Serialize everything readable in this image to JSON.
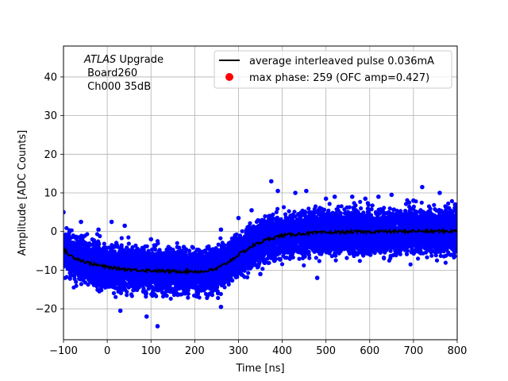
{
  "chart_data": {
    "type": "scatter",
    "xlabel": "Time [ns]",
    "ylabel": "Amplitude [ADC Counts]",
    "xlim": [
      -100,
      800
    ],
    "ylim": [
      -28,
      48
    ],
    "x_ticks": [
      -100,
      0,
      100,
      200,
      300,
      400,
      500,
      600,
      700,
      800
    ],
    "y_ticks": [
      -20,
      -10,
      0,
      10,
      20,
      30,
      40
    ],
    "grid": true,
    "legend_position": "top-right",
    "annotation": {
      "line1_italic": "ATLAS",
      "line1_rest": " Upgrade",
      "line2": " Board260",
      "line3": " Ch000 35dB"
    },
    "series": [
      {
        "name": "average interleaved pulse 0.036mA",
        "kind": "line",
        "color": "#000000",
        "x": [
          -100,
          -90,
          -80,
          -70,
          -60,
          -50,
          -40,
          -30,
          -20,
          -10,
          0,
          20,
          40,
          60,
          80,
          100,
          120,
          140,
          160,
          180,
          200,
          220,
          230,
          240,
          250,
          260,
          270,
          280,
          290,
          300,
          310,
          320,
          330,
          340,
          350,
          360,
          370,
          380,
          390,
          400,
          420,
          440,
          460,
          480,
          500,
          520,
          540,
          560,
          580,
          600,
          620,
          640,
          660,
          680,
          700,
          720,
          740,
          760,
          780,
          800
        ],
        "y": [
          -4.5,
          -5.8,
          -6.5,
          -7.0,
          -7.4,
          -7.9,
          -8.2,
          -8.5,
          -8.7,
          -9.0,
          -9.2,
          -9.5,
          -9.7,
          -9.9,
          -10.0,
          -10.1,
          -10.2,
          -10.3,
          -10.3,
          -10.3,
          -10.3,
          -10.4,
          -10.1,
          -10.0,
          -9.6,
          -9.0,
          -8.4,
          -7.6,
          -6.9,
          -6.0,
          -5.3,
          -4.6,
          -3.9,
          -3.3,
          -2.8,
          -2.3,
          -1.9,
          -1.6,
          -1.3,
          -1.0,
          -0.8,
          -0.6,
          -0.5,
          -0.3,
          -0.3,
          -0.2,
          -0.2,
          -0.1,
          -0.1,
          -0.1,
          0.0,
          0.0,
          0.0,
          0.0,
          0.1,
          0.1,
          0.0,
          0.1,
          0.1,
          0.1
        ]
      },
      {
        "name": "max phase: 259 (OFC amp=0.427)",
        "kind": "marker",
        "color": "#ff0000",
        "x": [],
        "y": []
      },
      {
        "name": "",
        "kind": "scatter",
        "color": "#0000ff",
        "x": [
          -100,
          -60,
          -20,
          10,
          40,
          100,
          140,
          175,
          210,
          260,
          300,
          330,
          375,
          390,
          430,
          455,
          500,
          520,
          560,
          590,
          620,
          650,
          690,
          700,
          720,
          760,
          795,
          115,
          90,
          30,
          260,
          350,
          480
        ],
        "y": [
          5,
          2.5,
          0.5,
          2.5,
          1.5,
          -2,
          -4,
          -4,
          -5,
          0.5,
          3.5,
          5.5,
          13,
          10.5,
          10,
          10.5,
          8.5,
          9,
          9,
          8.5,
          9,
          9.5,
          7.5,
          8,
          11.5,
          10,
          7,
          -24.5,
          -22,
          -20.5,
          -19.5,
          -11,
          -12
        ]
      }
    ],
    "scatter_band": {
      "color": "#0000ff",
      "spread": 5.5,
      "density": 10
    }
  }
}
